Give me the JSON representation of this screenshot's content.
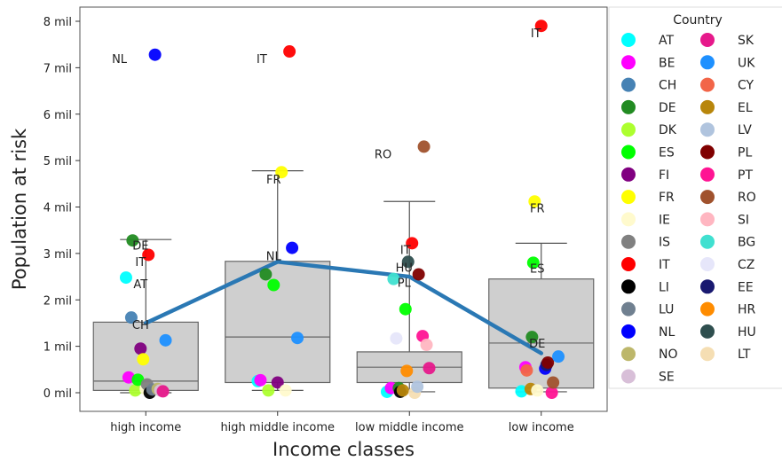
{
  "chart_data": {
    "type": "scatter",
    "xlabel": "Income classes",
    "ylabel": "Population at risk",
    "categories": [
      "high income",
      "high middle income",
      "low middle income",
      "low income"
    ],
    "ylim": [
      -0.4,
      8.2
    ],
    "y_ticks": [
      0,
      1,
      2,
      3,
      4,
      5,
      6,
      7,
      8
    ],
    "y_tick_labels": [
      "0 mil",
      "1 mil",
      "2 mil",
      "3 mil",
      "4 mil",
      "5 mil",
      "6 mil",
      "7 mil",
      "8 mil"
    ],
    "grid": false,
    "legend": {
      "title": "Country",
      "placement": "right"
    },
    "countries": [
      {
        "code": "AT",
        "color": "#00ffff"
      },
      {
        "code": "BE",
        "color": "#ff00ff"
      },
      {
        "code": "CH",
        "color": "#4682b4"
      },
      {
        "code": "DE",
        "color": "#228b22"
      },
      {
        "code": "DK",
        "color": "#adff2f"
      },
      {
        "code": "ES",
        "color": "#00ff00"
      },
      {
        "code": "FI",
        "color": "#800080"
      },
      {
        "code": "FR",
        "color": "#ffff00"
      },
      {
        "code": "IE",
        "color": "#fffacd"
      },
      {
        "code": "IS",
        "color": "#808080"
      },
      {
        "code": "IT",
        "color": "#ff0000"
      },
      {
        "code": "LI",
        "color": "#000000"
      },
      {
        "code": "LU",
        "color": "#708090"
      },
      {
        "code": "NL",
        "color": "#0000ff"
      },
      {
        "code": "NO",
        "color": "#bdb76b"
      },
      {
        "code": "SE",
        "color": "#d8bfd8"
      },
      {
        "code": "SK",
        "color": "#e6198b"
      },
      {
        "code": "UK",
        "color": "#1e90ff"
      },
      {
        "code": "CY",
        "color": "#f26548"
      },
      {
        "code": "EL",
        "color": "#b8860b"
      },
      {
        "code": "LV",
        "color": "#b0c4de"
      },
      {
        "code": "PL",
        "color": "#800000"
      },
      {
        "code": "PT",
        "color": "#ff1493"
      },
      {
        "code": "RO",
        "color": "#a0522d"
      },
      {
        "code": "SI",
        "color": "#ffb6c1"
      },
      {
        "code": "BG",
        "color": "#40e0d0"
      },
      {
        "code": "CZ",
        "color": "#e6e6fa"
      },
      {
        "code": "EE",
        "color": "#191970"
      },
      {
        "code": "HR",
        "color": "#ff8c00"
      },
      {
        "code": "HU",
        "color": "#2f4f4f"
      },
      {
        "code": "LT",
        "color": "#f5deb3"
      }
    ],
    "boxes": [
      {
        "category": "high income",
        "q1": 0.05,
        "median": 0.25,
        "q3": 1.52,
        "whisker_low": 0.0,
        "whisker_high": 3.3
      },
      {
        "category": "high middle income",
        "q1": 0.22,
        "median": 1.2,
        "q3": 2.83,
        "whisker_low": 0.05,
        "whisker_high": 4.78
      },
      {
        "category": "low middle income",
        "q1": 0.22,
        "median": 0.55,
        "q3": 0.88,
        "whisker_low": 0.02,
        "whisker_high": 4.12
      },
      {
        "category": "low income",
        "q1": 0.1,
        "median": 1.07,
        "q3": 2.45,
        "whisker_low": 0.02,
        "whisker_high": 3.22
      }
    ],
    "mean_line": {
      "color": "#2a78b4",
      "values": [
        1.5,
        2.82,
        2.5,
        0.85
      ]
    },
    "points": [
      {
        "category": "high income",
        "country": "AT",
        "y": 2.48,
        "jitter": -0.15
      },
      {
        "category": "high income",
        "country": "BE",
        "y": 0.33,
        "jitter": -0.13
      },
      {
        "category": "high income",
        "country": "CH",
        "y": 1.62,
        "jitter": -0.11
      },
      {
        "category": "high income",
        "country": "DE",
        "y": 3.28,
        "jitter": -0.1
      },
      {
        "category": "high income",
        "country": "DK",
        "y": 0.05,
        "jitter": -0.08
      },
      {
        "category": "high income",
        "country": "ES",
        "y": 0.28,
        "jitter": -0.06
      },
      {
        "category": "high income",
        "country": "FI",
        "y": 0.95,
        "jitter": -0.04
      },
      {
        "category": "high income",
        "country": "FR",
        "y": 0.72,
        "jitter": -0.02
      },
      {
        "category": "high income",
        "country": "IE",
        "y": 0.08,
        "jitter": 0.0
      },
      {
        "category": "high income",
        "country": "IS",
        "y": 0.18,
        "jitter": 0.01
      },
      {
        "category": "high income",
        "country": "IT",
        "y": 2.97,
        "jitter": 0.02
      },
      {
        "category": "high income",
        "country": "LI",
        "y": 0.0,
        "jitter": 0.03
      },
      {
        "category": "high income",
        "country": "LU",
        "y": 0.07,
        "jitter": 0.05
      },
      {
        "category": "high income",
        "country": "NL",
        "y": 7.28,
        "jitter": 0.07
      },
      {
        "category": "high income",
        "country": "NO",
        "y": 0.08,
        "jitter": 0.09
      },
      {
        "category": "high income",
        "country": "SE",
        "y": 0.05,
        "jitter": 0.11
      },
      {
        "category": "high income",
        "country": "SK",
        "y": 0.03,
        "jitter": 0.13
      },
      {
        "category": "high income",
        "country": "UK",
        "y": 1.13,
        "jitter": 0.15
      },
      {
        "category": "high middle income",
        "country": "AT",
        "y": 0.25,
        "jitter": -0.15
      },
      {
        "category": "high middle income",
        "country": "BE",
        "y": 0.27,
        "jitter": -0.13
      },
      {
        "category": "high middle income",
        "country": "DE",
        "y": 2.55,
        "jitter": -0.09
      },
      {
        "category": "high middle income",
        "country": "DK",
        "y": 0.05,
        "jitter": -0.07
      },
      {
        "category": "high middle income",
        "country": "ES",
        "y": 2.32,
        "jitter": -0.03
      },
      {
        "category": "high middle income",
        "country": "FI",
        "y": 0.22,
        "jitter": 0.0
      },
      {
        "category": "high middle income",
        "country": "FR",
        "y": 4.75,
        "jitter": 0.03
      },
      {
        "category": "high middle income",
        "country": "IE",
        "y": 0.05,
        "jitter": 0.06
      },
      {
        "category": "high middle income",
        "country": "IT",
        "y": 7.35,
        "jitter": 0.09
      },
      {
        "category": "high middle income",
        "country": "NL",
        "y": 3.12,
        "jitter": 0.11
      },
      {
        "category": "high middle income",
        "country": "UK",
        "y": 1.18,
        "jitter": 0.15
      },
      {
        "category": "low middle income",
        "country": "AT",
        "y": 0.02,
        "jitter": -0.17
      },
      {
        "category": "low middle income",
        "country": "BE",
        "y": 0.1,
        "jitter": -0.14
      },
      {
        "category": "low middle income",
        "country": "BG",
        "y": 2.45,
        "jitter": -0.12
      },
      {
        "category": "low middle income",
        "country": "CZ",
        "y": 1.17,
        "jitter": -0.1
      },
      {
        "category": "low middle income",
        "country": "DE",
        "y": 0.1,
        "jitter": -0.08
      },
      {
        "category": "low middle income",
        "country": "LI",
        "y": 0.02,
        "jitter": -0.07
      },
      {
        "category": "low middle income",
        "country": "EL",
        "y": 0.05,
        "jitter": -0.05
      },
      {
        "category": "low middle income",
        "country": "ES",
        "y": 1.8,
        "jitter": -0.03
      },
      {
        "category": "low middle income",
        "country": "HR",
        "y": 0.47,
        "jitter": -0.02
      },
      {
        "category": "low middle income",
        "country": "HU",
        "y": 2.82,
        "jitter": -0.01
      },
      {
        "category": "low middle income",
        "country": "IT",
        "y": 3.22,
        "jitter": 0.02
      },
      {
        "category": "low middle income",
        "country": "LT",
        "y": 0.0,
        "jitter": 0.04
      },
      {
        "category": "low middle income",
        "country": "LV",
        "y": 0.13,
        "jitter": 0.06
      },
      {
        "category": "low middle income",
        "country": "PL",
        "y": 2.55,
        "jitter": 0.07
      },
      {
        "category": "low middle income",
        "country": "PT",
        "y": 1.22,
        "jitter": 0.1
      },
      {
        "category": "low middle income",
        "country": "RO",
        "y": 5.3,
        "jitter": 0.11
      },
      {
        "category": "low middle income",
        "country": "SI",
        "y": 1.03,
        "jitter": 0.13
      },
      {
        "category": "low middle income",
        "country": "SK",
        "y": 0.53,
        "jitter": 0.15
      },
      {
        "category": "low income",
        "country": "AT",
        "y": 0.03,
        "jitter": -0.15
      },
      {
        "category": "low income",
        "country": "BE",
        "y": 0.55,
        "jitter": -0.12
      },
      {
        "category": "low income",
        "country": "CY",
        "y": 0.48,
        "jitter": -0.11
      },
      {
        "category": "low income",
        "country": "EL",
        "y": 0.08,
        "jitter": -0.08
      },
      {
        "category": "low income",
        "country": "DE",
        "y": 1.2,
        "jitter": -0.07
      },
      {
        "category": "low income",
        "country": "ES",
        "y": 2.8,
        "jitter": -0.06
      },
      {
        "category": "low income",
        "country": "FR",
        "y": 4.12,
        "jitter": -0.05
      },
      {
        "category": "low income",
        "country": "IE",
        "y": 0.05,
        "jitter": -0.03
      },
      {
        "category": "low income",
        "country": "IT",
        "y": 7.9,
        "jitter": 0.0
      },
      {
        "category": "low income",
        "country": "NL",
        "y": 0.52,
        "jitter": 0.03
      },
      {
        "category": "low income",
        "country": "EE",
        "y": 0.6,
        "jitter": 0.04
      },
      {
        "category": "low income",
        "country": "PL",
        "y": 0.65,
        "jitter": 0.05
      },
      {
        "category": "low income",
        "country": "PT",
        "y": 0.0,
        "jitter": 0.08
      },
      {
        "category": "low income",
        "country": "RO",
        "y": 0.22,
        "jitter": 0.09
      },
      {
        "category": "low income",
        "country": "UK",
        "y": 0.78,
        "jitter": 0.13
      }
    ],
    "annotations": [
      {
        "category": "high income",
        "text": "NL",
        "y": 7.2,
        "offset": -0.2
      },
      {
        "category": "high income",
        "text": "DE",
        "y": 3.18,
        "offset": -0.04
      },
      {
        "category": "high income",
        "text": "IT",
        "y": 2.83,
        "offset": -0.04
      },
      {
        "category": "high income",
        "text": "AT",
        "y": 2.35,
        "offset": -0.04
      },
      {
        "category": "high income",
        "text": "CH",
        "y": 1.47,
        "offset": -0.04
      },
      {
        "category": "high middle income",
        "text": "IT",
        "y": 7.2,
        "offset": -0.12
      },
      {
        "category": "high middle income",
        "text": "FR",
        "y": 4.6,
        "offset": -0.03
      },
      {
        "category": "high middle income",
        "text": "NL",
        "y": 2.95,
        "offset": -0.03
      },
      {
        "category": "low middle income",
        "text": "RO",
        "y": 5.15,
        "offset": -0.2
      },
      {
        "category": "low middle income",
        "text": "IT",
        "y": 3.08,
        "offset": -0.03
      },
      {
        "category": "low middle income",
        "text": "HU",
        "y": 2.7,
        "offset": -0.04
      },
      {
        "category": "low middle income",
        "text": "PL",
        "y": 2.38,
        "offset": -0.04
      },
      {
        "category": "low income",
        "text": "IT",
        "y": 7.75,
        "offset": -0.04
      },
      {
        "category": "low income",
        "text": "FR",
        "y": 3.98,
        "offset": -0.03
      },
      {
        "category": "low income",
        "text": "ES",
        "y": 2.68,
        "offset": -0.03
      },
      {
        "category": "low income",
        "text": "DE",
        "y": 1.07,
        "offset": -0.03
      }
    ]
  }
}
